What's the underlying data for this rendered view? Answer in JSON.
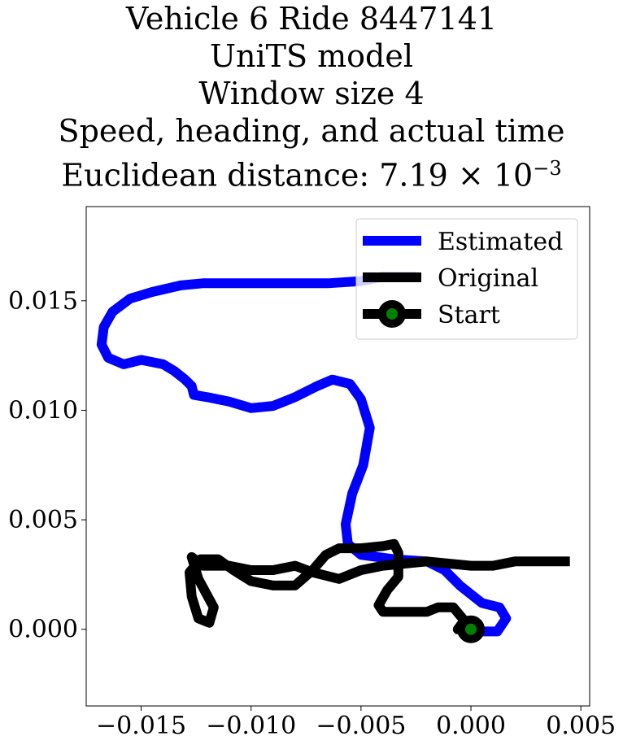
{
  "chart_data": {
    "type": "line",
    "title_lines": [
      "Vehicle 6 Ride 8447141",
      "UniTS model",
      "Window size 4",
      "Speed, heading, and actual time"
    ],
    "distance_label": "Euclidean distance: ",
    "distance_mantissa": "7.19",
    "distance_times": "×",
    "distance_base": "10",
    "distance_exponent": "−3",
    "xlim": [
      -0.0175,
      0.0054
    ],
    "ylim": [
      -0.0035,
      0.0193
    ],
    "xticks": [
      -0.015,
      -0.01,
      -0.005,
      0.0,
      0.005
    ],
    "xtick_labels": [
      "−0.015",
      "−0.010",
      "−0.005",
      "0.000",
      "0.005"
    ],
    "yticks": [
      0.0,
      0.005,
      0.01,
      0.015
    ],
    "ytick_labels": [
      "0.000",
      "0.005",
      "0.010",
      "0.015"
    ],
    "grid": false,
    "legend_placement": "top-right",
    "series": [
      {
        "name": "Estimated",
        "color": "#0000ff",
        "points": [
          [
            -0.0025,
            0.0161
          ],
          [
            -0.004,
            0.0161
          ],
          [
            -0.005,
            0.0159
          ],
          [
            -0.0065,
            0.0158
          ],
          [
            -0.008,
            0.0158
          ],
          [
            -0.0095,
            0.0158
          ],
          [
            -0.011,
            0.0158
          ],
          [
            -0.0122,
            0.0158
          ],
          [
            -0.0132,
            0.0157
          ],
          [
            -0.0145,
            0.0154
          ],
          [
            -0.0155,
            0.0151
          ],
          [
            -0.0163,
            0.0145
          ],
          [
            -0.0167,
            0.0138
          ],
          [
            -0.0168,
            0.013
          ],
          [
            -0.0165,
            0.0124
          ],
          [
            -0.0158,
            0.0121
          ],
          [
            -0.015,
            0.0123
          ],
          [
            -0.014,
            0.0121
          ],
          [
            -0.0135,
            0.0118
          ],
          [
            -0.013,
            0.0114
          ],
          [
            -0.0127,
            0.0111
          ],
          [
            -0.0126,
            0.0107
          ],
          [
            -0.012,
            0.0106
          ],
          [
            -0.011,
            0.0104
          ],
          [
            -0.01,
            0.0101
          ],
          [
            -0.009,
            0.0102
          ],
          [
            -0.008,
            0.0106
          ],
          [
            -0.007,
            0.0111
          ],
          [
            -0.0063,
            0.0114
          ],
          [
            -0.0055,
            0.0112
          ],
          [
            -0.005,
            0.0105
          ],
          [
            -0.0046,
            0.0092
          ],
          [
            -0.0049,
            0.0075
          ],
          [
            -0.0054,
            0.0062
          ],
          [
            -0.0057,
            0.0048
          ],
          [
            -0.0056,
            0.0039
          ],
          [
            -0.005,
            0.0034
          ],
          [
            -0.0035,
            0.0032
          ],
          [
            -0.002,
            0.0031
          ],
          [
            -0.0012,
            0.0027
          ],
          [
            -0.0005,
            0.002
          ],
          [
            0.0005,
            0.0012
          ],
          [
            0.0013,
            0.001
          ],
          [
            0.0016,
            0.0005
          ],
          [
            0.0012,
            -0.0001
          ],
          [
            0.0002,
            -0.0001
          ]
        ]
      },
      {
        "name": "Original",
        "color": "#000000",
        "points": [
          [
            0.0,
            0.0
          ],
          [
            -0.0006,
            0.0
          ],
          [
            -0.0003,
            0.0004
          ],
          [
            -0.0008,
            0.001
          ],
          [
            -0.0015,
            0.001
          ],
          [
            -0.002,
            0.0008
          ],
          [
            -0.003,
            0.0008
          ],
          [
            -0.004,
            0.0008
          ],
          [
            -0.0042,
            0.0011
          ],
          [
            -0.0038,
            0.0018
          ],
          [
            -0.0033,
            0.0024
          ],
          [
            -0.0033,
            0.0035
          ],
          [
            -0.0035,
            0.0039
          ],
          [
            -0.004,
            0.0038
          ],
          [
            -0.005,
            0.0037
          ],
          [
            -0.006,
            0.0037
          ],
          [
            -0.0066,
            0.0034
          ],
          [
            -0.0072,
            0.0027
          ],
          [
            -0.008,
            0.002
          ],
          [
            -0.009,
            0.002
          ],
          [
            -0.01,
            0.0022
          ],
          [
            -0.0108,
            0.0027
          ],
          [
            -0.0115,
            0.0032
          ],
          [
            -0.0123,
            0.0032
          ],
          [
            -0.0128,
            0.0026
          ],
          [
            -0.0127,
            0.0015
          ],
          [
            -0.0124,
            0.0005
          ],
          [
            -0.0119,
            0.0003
          ],
          [
            -0.0117,
            0.001
          ],
          [
            -0.0124,
            0.0023
          ],
          [
            -0.0127,
            0.0033
          ],
          [
            -0.0122,
            0.0029
          ],
          [
            -0.011,
            0.0029
          ],
          [
            -0.01,
            0.0027
          ],
          [
            -0.009,
            0.0027
          ],
          [
            -0.008,
            0.0029
          ],
          [
            -0.0072,
            0.0026
          ],
          [
            -0.006,
            0.0023
          ],
          [
            -0.005,
            0.0027
          ],
          [
            -0.004,
            0.0029
          ],
          [
            -0.002,
            0.0031
          ],
          [
            0.0,
            0.0029
          ],
          [
            0.001,
            0.0029
          ],
          [
            0.002,
            0.0031
          ],
          [
            0.0035,
            0.0031
          ],
          [
            0.0045,
            0.0031
          ]
        ]
      }
    ],
    "start": {
      "name": "Start",
      "x": 0.0,
      "y": 0.0,
      "marker_face": "#008000",
      "marker_edge": "#000000"
    }
  }
}
